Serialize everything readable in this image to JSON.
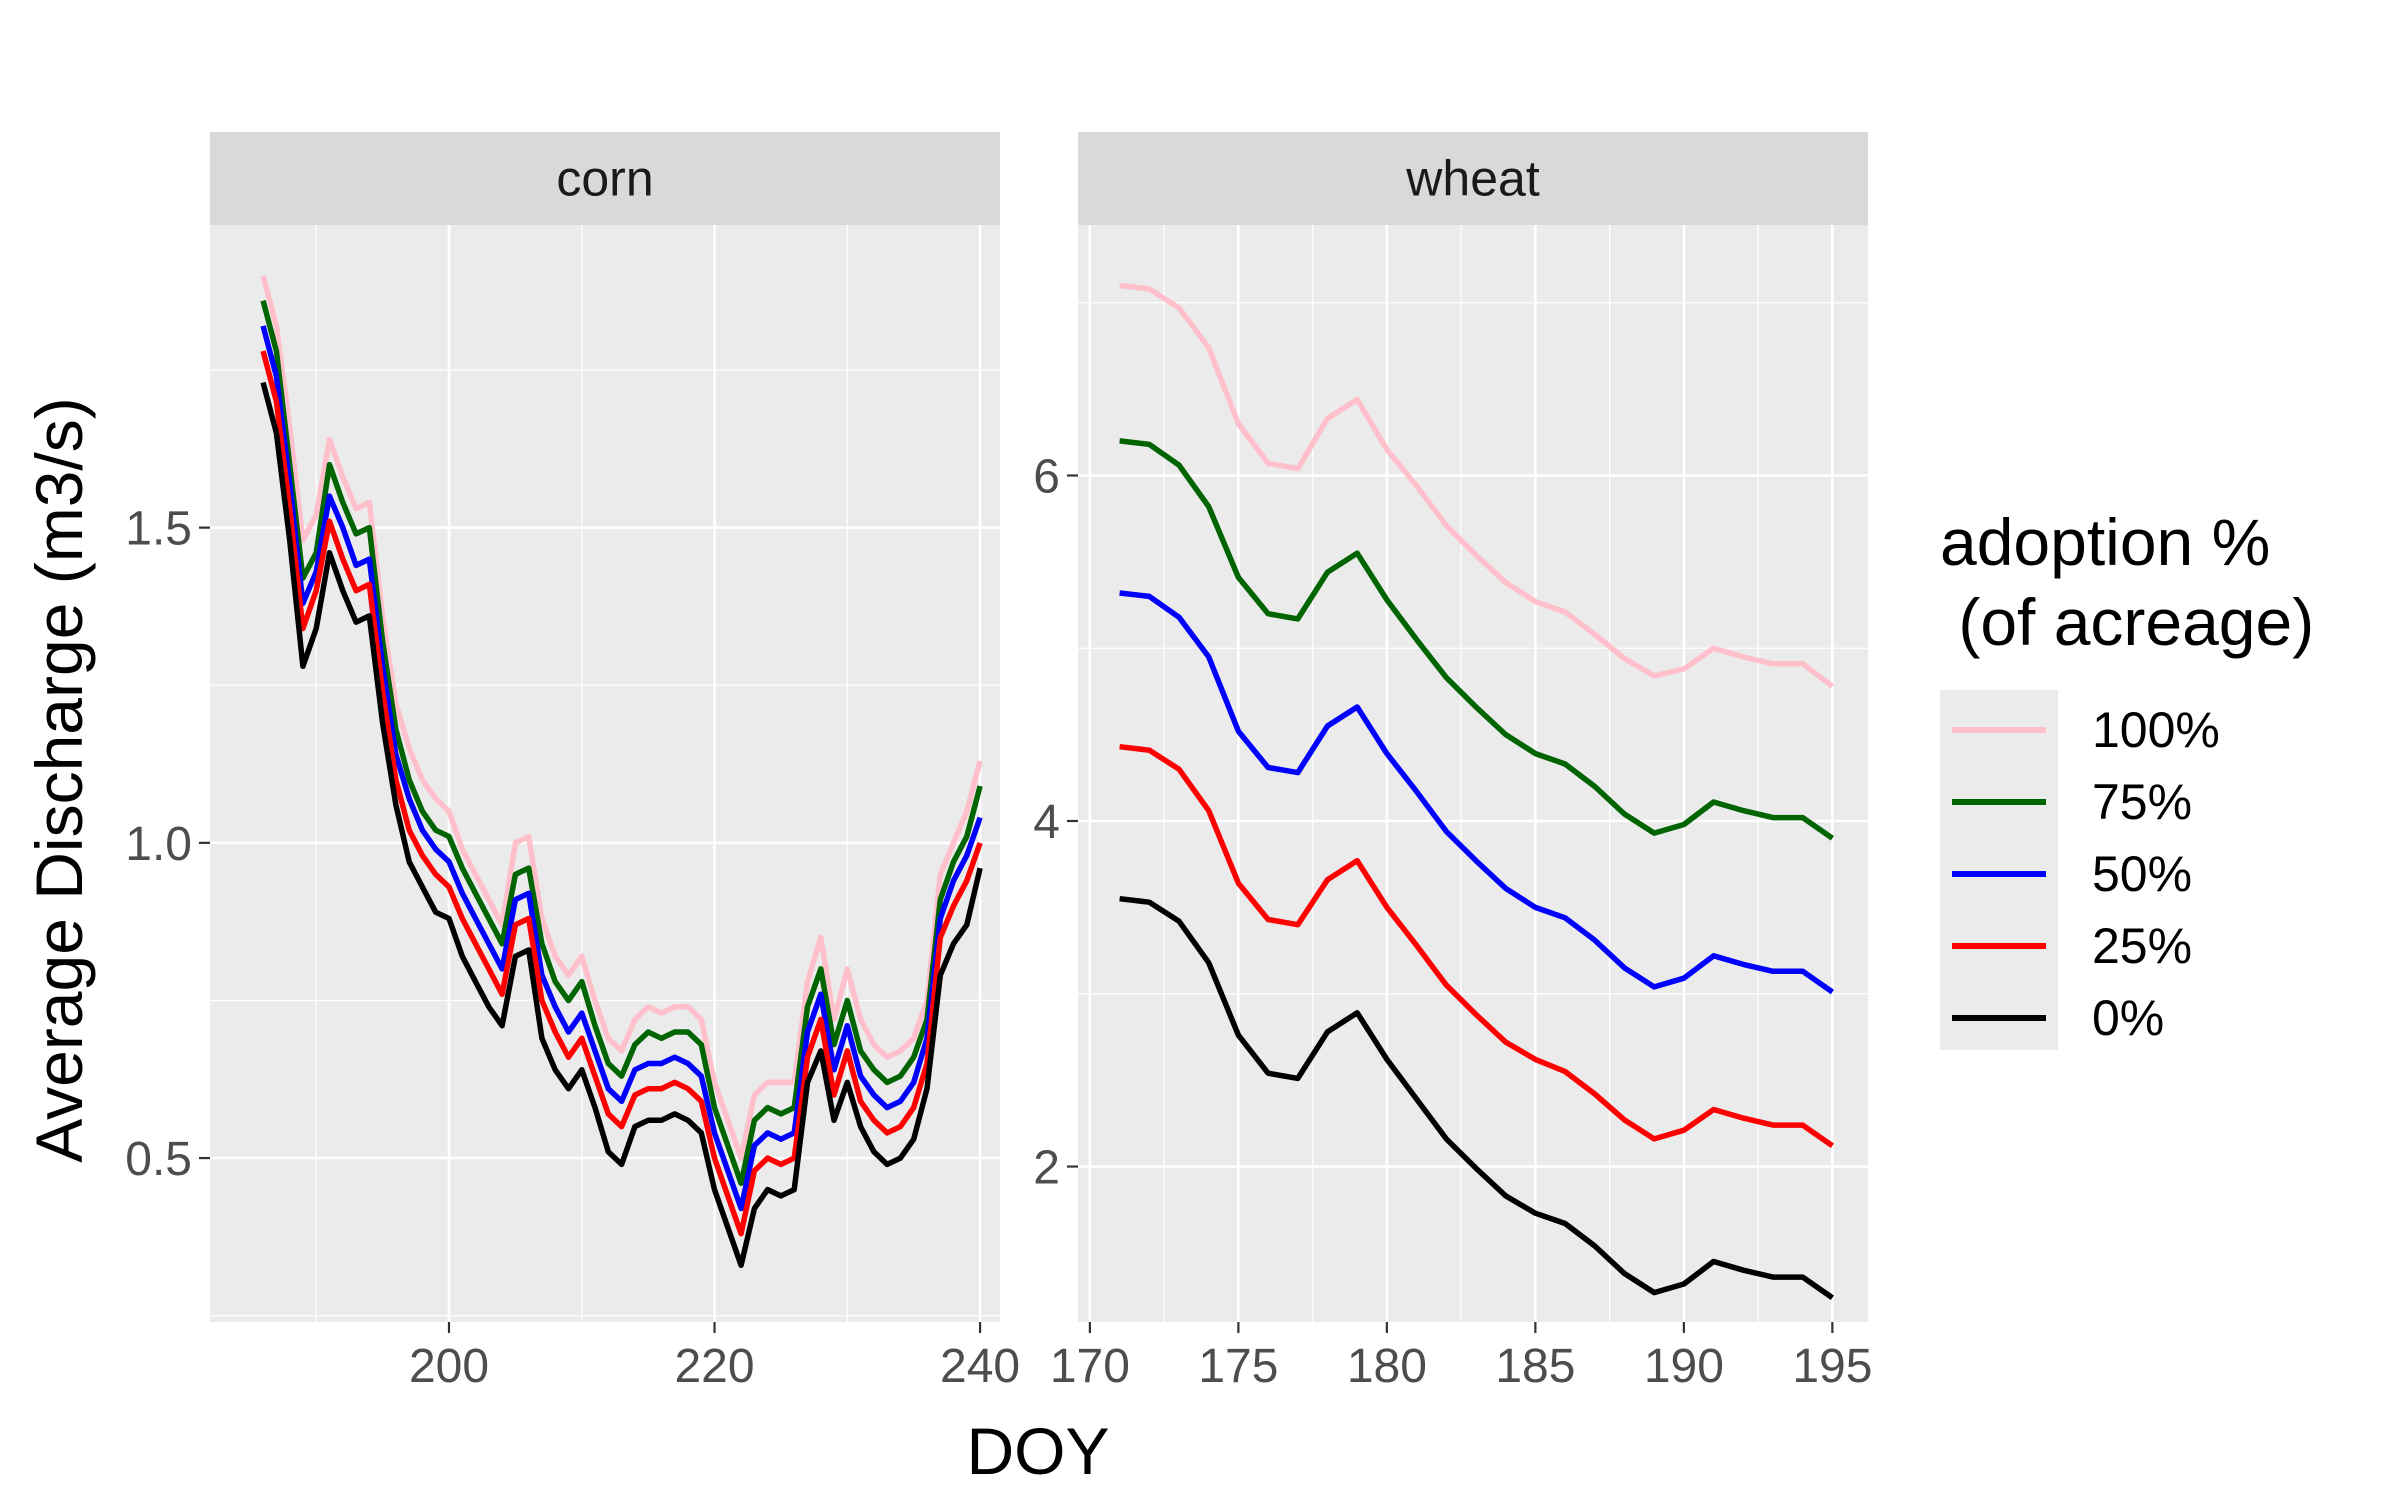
{
  "chart_data": {
    "type": "line",
    "ylabel": "Average Discharge (m3/s)",
    "xlabel": "DOY",
    "legend": {
      "title_line1": "adoption %",
      "title_line2": " (of acreage)",
      "placement": "right",
      "entries": [
        {
          "label": "100%",
          "color": "#FFC0CB"
        },
        {
          "label": "75%",
          "color": "#006400"
        },
        {
          "label": "50%",
          "color": "#0000FF"
        },
        {
          "label": "25%",
          "color": "#FF0000"
        },
        {
          "label": "0%",
          "color": "#000000"
        }
      ]
    },
    "grid": true,
    "panels": [
      {
        "facet": "corn",
        "xlim": [
          182,
          241.5
        ],
        "ylim": [
          0.24,
          1.98
        ],
        "xticks": [
          200,
          220,
          240
        ],
        "yticks": [
          0.5,
          1.0,
          1.5
        ],
        "ytick_labels": [
          "0.5",
          "1.0",
          "1.5"
        ],
        "x": [
          186,
          187,
          188,
          189,
          190,
          191,
          192,
          193,
          194,
          195,
          196,
          197,
          198,
          199,
          200,
          201,
          202,
          203,
          204,
          205,
          206,
          207,
          208,
          209,
          210,
          211,
          212,
          213,
          214,
          215,
          216,
          217,
          218,
          219,
          220,
          221,
          222,
          223,
          224,
          225,
          226,
          227,
          228,
          229,
          230,
          231,
          232,
          233,
          234,
          235,
          236,
          237,
          238,
          239,
          240
        ],
        "series": [
          {
            "name": "100%",
            "color": "#FFC0CB",
            "values": [
              1.9,
              1.82,
              1.66,
              1.48,
              1.52,
              1.64,
              1.58,
              1.53,
              1.54,
              1.36,
              1.22,
              1.15,
              1.1,
              1.07,
              1.05,
              0.99,
              0.95,
              0.91,
              0.87,
              1.0,
              1.01,
              0.88,
              0.82,
              0.79,
              0.82,
              0.75,
              0.69,
              0.67,
              0.72,
              0.74,
              0.73,
              0.74,
              0.74,
              0.72,
              0.62,
              0.56,
              0.5,
              0.6,
              0.62,
              0.62,
              0.62,
              0.78,
              0.85,
              0.72,
              0.8,
              0.72,
              0.68,
              0.66,
              0.67,
              0.69,
              0.75,
              0.95,
              1.0,
              1.05,
              1.13
            ]
          },
          {
            "name": "75%",
            "color": "#006400",
            "values": [
              1.86,
              1.78,
              1.6,
              1.42,
              1.46,
              1.6,
              1.54,
              1.49,
              1.5,
              1.32,
              1.18,
              1.1,
              1.05,
              1.02,
              1.01,
              0.96,
              0.92,
              0.88,
              0.84,
              0.95,
              0.96,
              0.84,
              0.78,
              0.75,
              0.78,
              0.71,
              0.65,
              0.63,
              0.68,
              0.7,
              0.69,
              0.7,
              0.7,
              0.68,
              0.58,
              0.52,
              0.46,
              0.56,
              0.58,
              0.57,
              0.58,
              0.74,
              0.8,
              0.68,
              0.75,
              0.67,
              0.64,
              0.62,
              0.63,
              0.66,
              0.72,
              0.91,
              0.97,
              1.01,
              1.09
            ]
          },
          {
            "name": "50%",
            "color": "#0000FF",
            "values": [
              1.82,
              1.74,
              1.57,
              1.38,
              1.43,
              1.55,
              1.5,
              1.44,
              1.45,
              1.28,
              1.14,
              1.07,
              1.02,
              0.99,
              0.97,
              0.92,
              0.88,
              0.84,
              0.8,
              0.91,
              0.92,
              0.79,
              0.74,
              0.7,
              0.73,
              0.67,
              0.61,
              0.59,
              0.64,
              0.65,
              0.65,
              0.66,
              0.65,
              0.63,
              0.54,
              0.48,
              0.42,
              0.52,
              0.54,
              0.53,
              0.54,
              0.7,
              0.76,
              0.64,
              0.71,
              0.63,
              0.6,
              0.58,
              0.59,
              0.62,
              0.69,
              0.88,
              0.94,
              0.98,
              1.04
            ]
          },
          {
            "name": "25%",
            "color": "#FF0000",
            "values": [
              1.78,
              1.7,
              1.53,
              1.34,
              1.4,
              1.51,
              1.45,
              1.4,
              1.41,
              1.24,
              1.1,
              1.02,
              0.98,
              0.95,
              0.93,
              0.88,
              0.84,
              0.8,
              0.76,
              0.87,
              0.88,
              0.75,
              0.7,
              0.66,
              0.69,
              0.63,
              0.57,
              0.55,
              0.6,
              0.61,
              0.61,
              0.62,
              0.61,
              0.59,
              0.5,
              0.44,
              0.38,
              0.48,
              0.5,
              0.49,
              0.5,
              0.66,
              0.72,
              0.6,
              0.67,
              0.59,
              0.56,
              0.54,
              0.55,
              0.58,
              0.65,
              0.85,
              0.9,
              0.94,
              1.0
            ]
          },
          {
            "name": "0%",
            "color": "#000000",
            "values": [
              1.73,
              1.65,
              1.48,
              1.28,
              1.34,
              1.46,
              1.4,
              1.35,
              1.36,
              1.19,
              1.06,
              0.97,
              0.93,
              0.89,
              0.88,
              0.82,
              0.78,
              0.74,
              0.71,
              0.82,
              0.83,
              0.69,
              0.64,
              0.61,
              0.64,
              0.58,
              0.51,
              0.49,
              0.55,
              0.56,
              0.56,
              0.57,
              0.56,
              0.54,
              0.45,
              0.39,
              0.33,
              0.42,
              0.45,
              0.44,
              0.45,
              0.62,
              0.67,
              0.56,
              0.62,
              0.55,
              0.51,
              0.49,
              0.5,
              0.53,
              0.61,
              0.79,
              0.84,
              0.87,
              0.96
            ]
          }
        ]
      },
      {
        "facet": "wheat",
        "xlim": [
          169.6,
          196.2
        ],
        "ylim": [
          1.1,
          7.45
        ],
        "xticks": [
          170,
          175,
          180,
          185,
          190,
          195
        ],
        "yticks": [
          2,
          4,
          6
        ],
        "ytick_labels": [
          "2",
          "4",
          "6"
        ],
        "x": [
          171,
          172,
          173,
          174,
          175,
          176,
          177,
          178,
          179,
          180,
          181,
          182,
          183,
          184,
          185,
          186,
          187,
          188,
          189,
          190,
          191,
          192,
          193,
          194,
          195
        ],
        "series": [
          {
            "name": "100%",
            "color": "#FFC0CB",
            "values": [
              7.1,
              7.08,
              6.97,
              6.74,
              6.3,
              6.07,
              6.04,
              6.33,
              6.44,
              6.15,
              5.94,
              5.71,
              5.54,
              5.38,
              5.27,
              5.21,
              5.08,
              4.94,
              4.84,
              4.88,
              5.0,
              4.95,
              4.91,
              4.91,
              4.78
            ]
          },
          {
            "name": "75%",
            "color": "#006400",
            "values": [
              6.2,
              6.18,
              6.06,
              5.82,
              5.41,
              5.2,
              5.17,
              5.44,
              5.55,
              5.28,
              5.05,
              4.83,
              4.66,
              4.5,
              4.39,
              4.33,
              4.2,
              4.04,
              3.93,
              3.98,
              4.11,
              4.06,
              4.02,
              4.02,
              3.9
            ]
          },
          {
            "name": "50%",
            "color": "#0000FF",
            "values": [
              5.32,
              5.3,
              5.18,
              4.95,
              4.52,
              4.31,
              4.28,
              4.55,
              4.66,
              4.39,
              4.17,
              3.94,
              3.77,
              3.61,
              3.5,
              3.44,
              3.31,
              3.15,
              3.04,
              3.09,
              3.22,
              3.17,
              3.13,
              3.13,
              3.01
            ]
          },
          {
            "name": "25%",
            "color": "#FF0000",
            "values": [
              4.43,
              4.41,
              4.3,
              4.06,
              3.64,
              3.43,
              3.4,
              3.66,
              3.77,
              3.5,
              3.28,
              3.05,
              2.88,
              2.72,
              2.62,
              2.55,
              2.42,
              2.27,
              2.16,
              2.21,
              2.33,
              2.28,
              2.24,
              2.24,
              2.12
            ]
          },
          {
            "name": "0%",
            "color": "#000000",
            "values": [
              3.55,
              3.53,
              3.42,
              3.18,
              2.76,
              2.54,
              2.51,
              2.78,
              2.89,
              2.62,
              2.39,
              2.16,
              1.99,
              1.83,
              1.73,
              1.67,
              1.54,
              1.38,
              1.27,
              1.32,
              1.45,
              1.4,
              1.36,
              1.36,
              1.24
            ]
          }
        ]
      }
    ]
  }
}
